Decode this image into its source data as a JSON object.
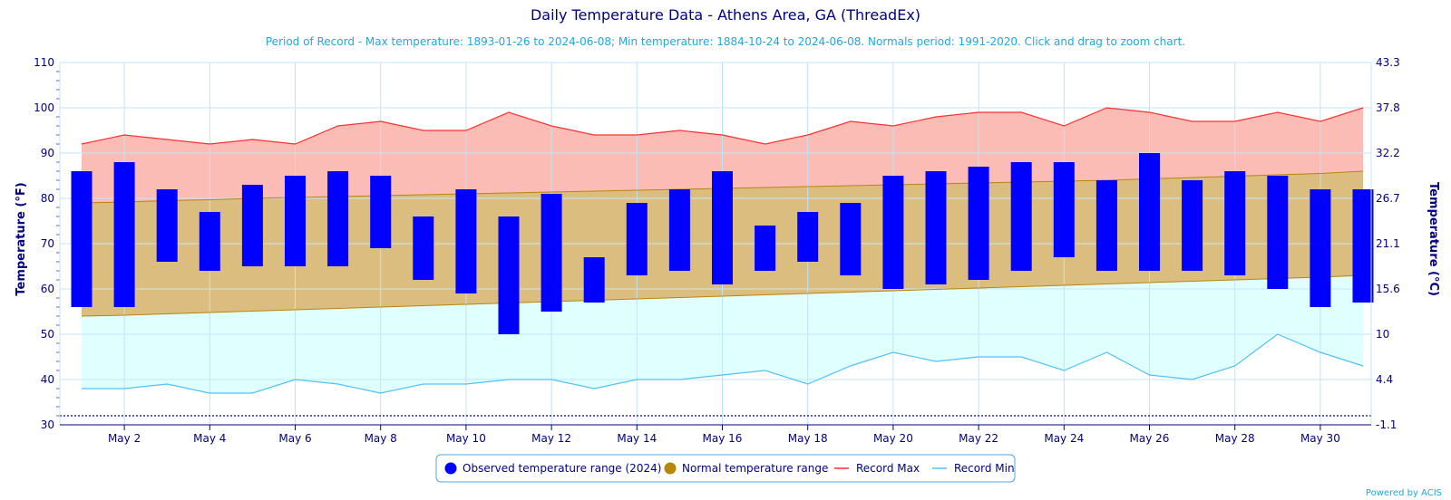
{
  "chart_data": {
    "type": "bar",
    "title": "Daily Temperature Data - Athens Area, GA (ThreadEx)",
    "subtitle": "Period of Record - Max temperature: 1893-01-26 to 2024-06-08; Min temperature: 1884-10-24 to 2024-06-08. Normals period: 1991-2020. Click and drag to zoom chart.",
    "ylabel": "Temperature (°F)",
    "ylabel_right": "Temperature (°C)",
    "ylim": [
      30,
      110
    ],
    "y_ticks": [
      "30",
      "40",
      "50",
      "60",
      "70",
      "80",
      "90",
      "100",
      "110"
    ],
    "y_ticks_right": [
      "-1.1",
      "4.4",
      "10",
      "15.6",
      "21.1",
      "26.7",
      "32.2",
      "37.8",
      "43.3"
    ],
    "x_ticks": [
      "May 2",
      "May 4",
      "May 6",
      "May 8",
      "May 10",
      "May 12",
      "May 14",
      "May 16",
      "May 18",
      "May 20",
      "May 22",
      "May 24",
      "May 26",
      "May 28",
      "May 30"
    ],
    "x_tick_days": [
      2,
      4,
      6,
      8,
      10,
      12,
      14,
      16,
      18,
      20,
      22,
      24,
      26,
      28,
      30
    ],
    "days": [
      1,
      2,
      3,
      4,
      5,
      6,
      7,
      8,
      9,
      10,
      11,
      12,
      13,
      14,
      15,
      16,
      17,
      18,
      19,
      20,
      21,
      22,
      23,
      24,
      25,
      26,
      27,
      28,
      29,
      30,
      31
    ],
    "grid": true,
    "legend_position": "bottom-center",
    "dotted_reference_line": 32,
    "series": [
      {
        "name": "Observed temperature range (2024)",
        "type": "columnrange",
        "color": "#0000ff",
        "low": [
          56,
          56,
          66,
          64,
          65,
          65,
          65,
          69,
          62,
          59,
          50,
          55,
          57,
          63,
          64,
          61,
          64,
          66,
          63,
          60,
          61,
          62,
          64,
          67,
          64,
          64,
          64,
          63,
          60,
          56,
          57
        ],
        "high": [
          86,
          88,
          82,
          77,
          83,
          85,
          86,
          85,
          76,
          82,
          76,
          81,
          67,
          79,
          82,
          86,
          74,
          77,
          79,
          85,
          86,
          87,
          88,
          88,
          84,
          90,
          84,
          86,
          85,
          82,
          82
        ]
      },
      {
        "name": "Normal temperature range",
        "type": "arearange",
        "color": "#b8860b",
        "fill": "#dbbd7f",
        "low": [
          54,
          54.2,
          54.5,
          54.8,
          55.1,
          55.4,
          55.7,
          56,
          56.3,
          56.6,
          56.9,
          57.2,
          57.5,
          57.8,
          58.1,
          58.4,
          58.7,
          59,
          59.3,
          59.6,
          59.9,
          60.2,
          60.5,
          60.8,
          61.1,
          61.4,
          61.7,
          62,
          62.3,
          62.6,
          63
        ],
        "high": [
          79,
          79.2,
          79.5,
          79.7,
          80,
          80.2,
          80.4,
          80.6,
          80.8,
          81,
          81.2,
          81.4,
          81.6,
          81.8,
          82,
          82.2,
          82.4,
          82.6,
          82.8,
          83,
          83.2,
          83.4,
          83.6,
          83.8,
          84,
          84.3,
          84.6,
          84.9,
          85.2,
          85.5,
          86
        ]
      },
      {
        "name": "Record Max",
        "type": "line",
        "color": "#ff3030",
        "fill": "#fbbcb6",
        "values": [
          92,
          94,
          93,
          92,
          93,
          92,
          96,
          97,
          95,
          95,
          99,
          96,
          94,
          94,
          95,
          94,
          92,
          94,
          97,
          96,
          98,
          99,
          99,
          96,
          100,
          99,
          97,
          97,
          99,
          97,
          100
        ]
      },
      {
        "name": "Record Min",
        "type": "line",
        "color": "#4fc3f7",
        "fill": "#e0ffff",
        "values": [
          38,
          38,
          39,
          37,
          37,
          40,
          39,
          37,
          39,
          39,
          40,
          40,
          38,
          40,
          40,
          41,
          42,
          39,
          43,
          46,
          44,
          45,
          45,
          42,
          46,
          41,
          40,
          43,
          50,
          46,
          43
        ]
      }
    ],
    "credits": "Powered by ACIS"
  }
}
